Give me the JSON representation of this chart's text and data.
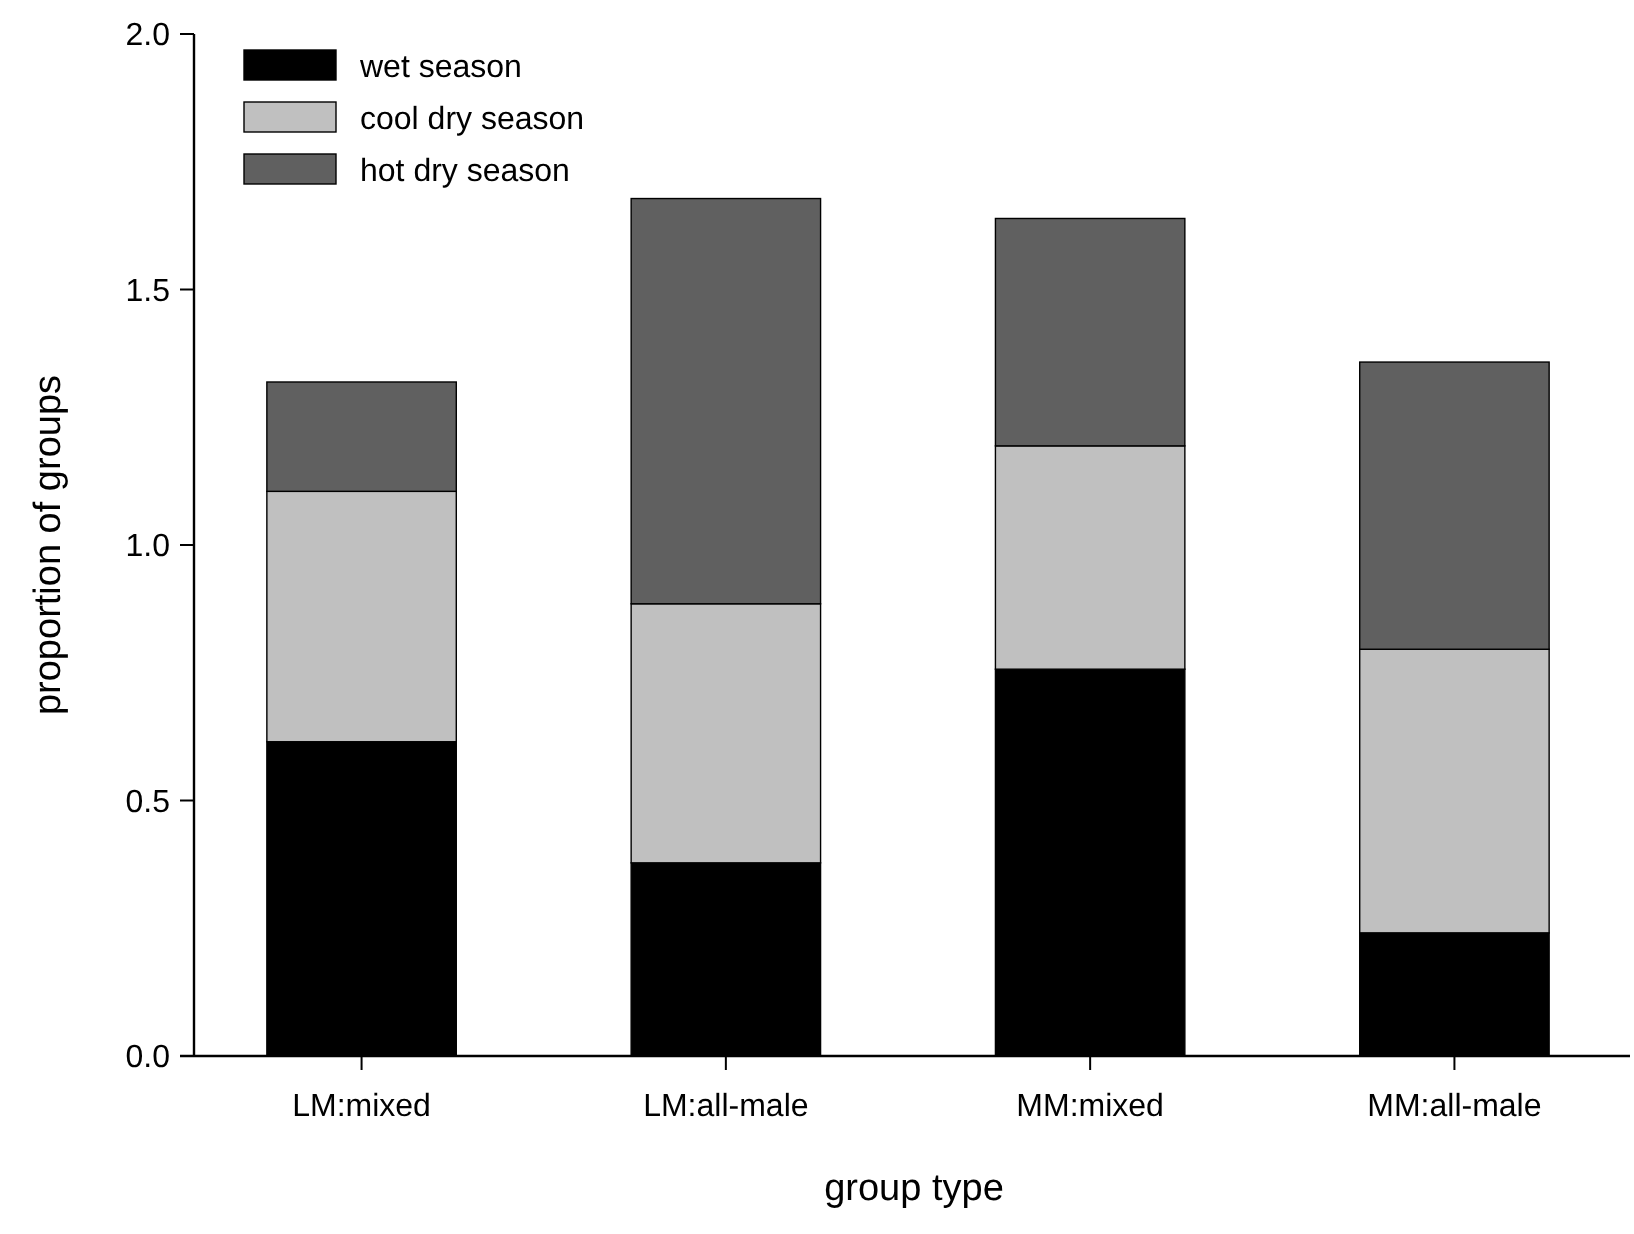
{
  "chart_data": {
    "type": "bar",
    "stacked": true,
    "xlabel": "group type",
    "ylabel": "proportion of groups",
    "categories": [
      "LM:mixed",
      "LM:all-male",
      "MM:mixed",
      "MM:all-male"
    ],
    "series": [
      {
        "name": "wet season",
        "color": "#000000",
        "values": [
          0.615,
          0.378,
          0.757,
          0.241
        ]
      },
      {
        "name": "cool dry season",
        "color": "#c0c0c0",
        "values": [
          0.49,
          0.507,
          0.437,
          0.555
        ]
      },
      {
        "name": "hot dry season",
        "color": "#606060",
        "values": [
          0.214,
          0.793,
          0.445,
          0.562
        ]
      }
    ],
    "ylim": [
      0,
      2
    ],
    "yticks": [
      {
        "value": 0,
        "label": "0.0"
      },
      {
        "value": 0.5,
        "label": "0.5"
      },
      {
        "value": 1,
        "label": "1.0"
      },
      {
        "value": 1.5,
        "label": "1.5"
      },
      {
        "value": 2,
        "label": "2.0"
      }
    ],
    "legend": "top left",
    "grid": false
  }
}
